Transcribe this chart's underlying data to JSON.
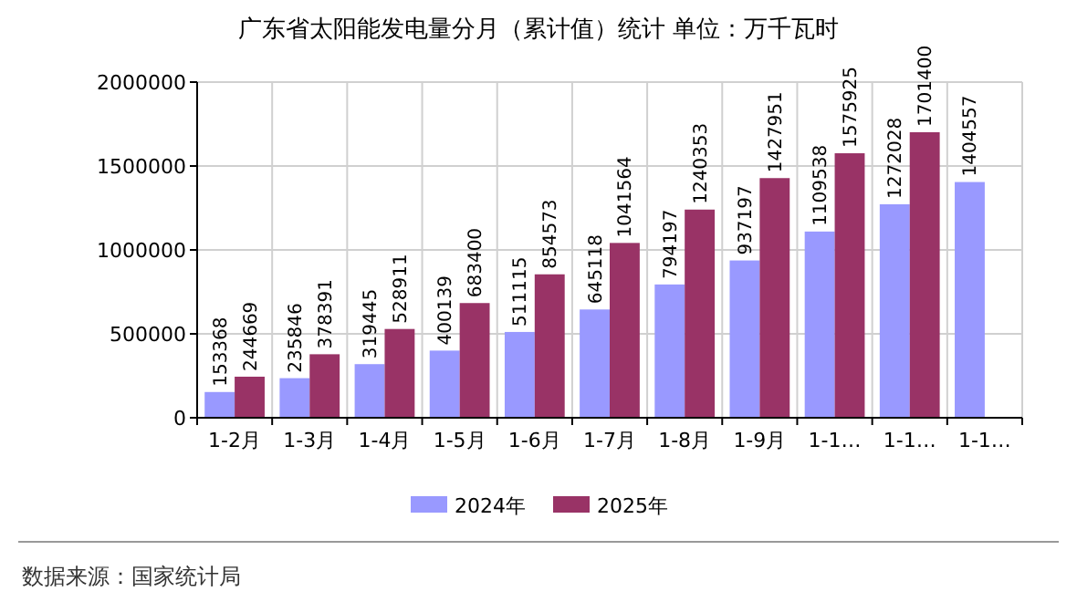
{
  "chart_data": {
    "type": "bar",
    "title": "广东省太阳能发电量分月（累计值）统计 单位：万千瓦时",
    "categories": [
      "1-2月",
      "1-3月",
      "1-4月",
      "1-5月",
      "1-6月",
      "1-7月",
      "1-8月",
      "1-9月",
      "1-1…",
      "1-1…",
      "1-1…"
    ],
    "series": [
      {
        "name": "2024年",
        "color": "#9999ff",
        "values": [
          153368,
          235846,
          319445,
          400139,
          511115,
          645118,
          794197,
          937197,
          1109538,
          1272028,
          1404557
        ]
      },
      {
        "name": "2025年",
        "color": "#993366",
        "values": [
          244669,
          378391,
          528911,
          683400,
          854573,
          1041564,
          1240353,
          1427951,
          1575925,
          1701400,
          null
        ]
      }
    ],
    "ylim": [
      0,
      2000000
    ],
    "yticks": [
      0,
      500000,
      1000000,
      1500000,
      2000000
    ],
    "grid": true,
    "legend": "bottom",
    "data_labels": true,
    "annotations": [
      "数据来源：国家统计局"
    ]
  }
}
